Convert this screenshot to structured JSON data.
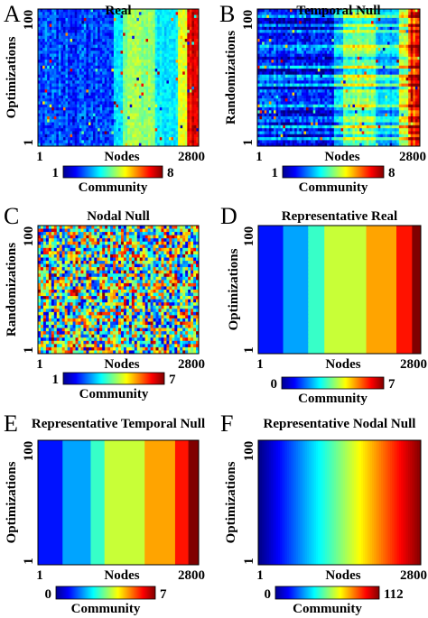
{
  "chart_data": [
    {
      "panel_letter": "A",
      "type": "heatmap",
      "title": "Real",
      "xlabel": "Nodes",
      "ylabel": "Optimizations",
      "x_ticks": [
        "1",
        "2800"
      ],
      "y_ticks": [
        "100",
        "1"
      ],
      "xlim": [
        1,
        2800
      ],
      "ylim": [
        1,
        100
      ],
      "colorbar": {
        "label": "Community",
        "min_label": "1",
        "max_label": "8",
        "range": [
          1,
          8
        ],
        "colormap": "jet"
      },
      "pattern": "vertical bands of community assignments, noisy left region (blue), bands to the right (cyan, green, yellow, red)"
    },
    {
      "panel_letter": "B",
      "type": "heatmap",
      "title": "Temporal Null",
      "xlabel": "Nodes",
      "ylabel": "Randomizations",
      "x_ticks": [
        "1",
        "2800"
      ],
      "y_ticks": [
        "100",
        "1"
      ],
      "xlim": [
        1,
        2800
      ],
      "ylim": [
        1,
        100
      ],
      "colorbar": {
        "label": "Community",
        "min_label": "1",
        "max_label": "8",
        "range": [
          1,
          8
        ],
        "colormap": "jet"
      },
      "pattern": "vertical bands with strong horizontal row noise"
    },
    {
      "panel_letter": "C",
      "type": "heatmap",
      "title": "Nodal Null",
      "xlabel": "Nodes",
      "ylabel": "Randomizations",
      "x_ticks": [
        "1",
        "2800"
      ],
      "y_ticks": [
        "100",
        "1"
      ],
      "xlim": [
        1,
        2800
      ],
      "ylim": [
        1,
        100
      ],
      "colorbar": {
        "label": "Community",
        "min_label": "1",
        "max_label": "7",
        "range": [
          1,
          7
        ],
        "colormap": "jet"
      },
      "pattern": "random noise of community assignments"
    },
    {
      "panel_letter": "D",
      "type": "heatmap",
      "title": "Representative Real",
      "xlabel": "Nodes",
      "ylabel": "Optimizations",
      "x_ticks": [
        "1",
        "2800"
      ],
      "y_ticks": [
        "100",
        "1"
      ],
      "xlim": [
        1,
        2800
      ],
      "ylim": [
        1,
        100
      ],
      "colorbar": {
        "label": "Community",
        "min_label": "0",
        "max_label": "7",
        "range": [
          0,
          7
        ],
        "colormap": "jet"
      },
      "bands": [
        {
          "community": 1,
          "x_start": 1,
          "x_end": 430
        },
        {
          "community": 2,
          "x_start": 430,
          "x_end": 860
        },
        {
          "community": 3,
          "x_start": 860,
          "x_end": 1140
        },
        {
          "community": 4,
          "x_start": 1140,
          "x_end": 1860
        },
        {
          "community": 5,
          "x_start": 1860,
          "x_end": 2380
        },
        {
          "community": 6,
          "x_start": 2380,
          "x_end": 2650
        },
        {
          "community": 7,
          "x_start": 2650,
          "x_end": 2800
        }
      ]
    },
    {
      "panel_letter": "E",
      "type": "heatmap",
      "title": "Representative Temporal Null",
      "xlabel": "Nodes",
      "ylabel": "Optimizations",
      "x_ticks": [
        "1",
        "2800"
      ],
      "y_ticks": [
        "100",
        "1"
      ],
      "xlim": [
        1,
        2800
      ],
      "ylim": [
        1,
        100
      ],
      "colorbar": {
        "label": "Community",
        "min_label": "0",
        "max_label": "7",
        "range": [
          0,
          7
        ],
        "colormap": "jet"
      },
      "bands": [
        {
          "community": 1,
          "x_start": 1,
          "x_end": 430
        },
        {
          "community": 2,
          "x_start": 430,
          "x_end": 920
        },
        {
          "community": 3,
          "x_start": 920,
          "x_end": 1160
        },
        {
          "community": 4,
          "x_start": 1160,
          "x_end": 1860
        },
        {
          "community": 5,
          "x_start": 1860,
          "x_end": 2390
        },
        {
          "community": 6,
          "x_start": 2390,
          "x_end": 2620
        },
        {
          "community": 7,
          "x_start": 2620,
          "x_end": 2800
        }
      ]
    },
    {
      "panel_letter": "F",
      "type": "heatmap",
      "title": "Representative Nodal Null",
      "xlabel": "Nodes",
      "ylabel": "Optimizations",
      "x_ticks": [
        "1",
        "2800"
      ],
      "y_ticks": [
        "100",
        "1"
      ],
      "xlim": [
        1,
        2800
      ],
      "ylim": [
        1,
        100
      ],
      "colorbar": {
        "label": "Community",
        "min_label": "0",
        "max_label": "112",
        "range": [
          0,
          112
        ],
        "colormap": "jet"
      },
      "pattern": "continuous gradient from community 0 at node 1 to community 112 at node 2800"
    }
  ]
}
